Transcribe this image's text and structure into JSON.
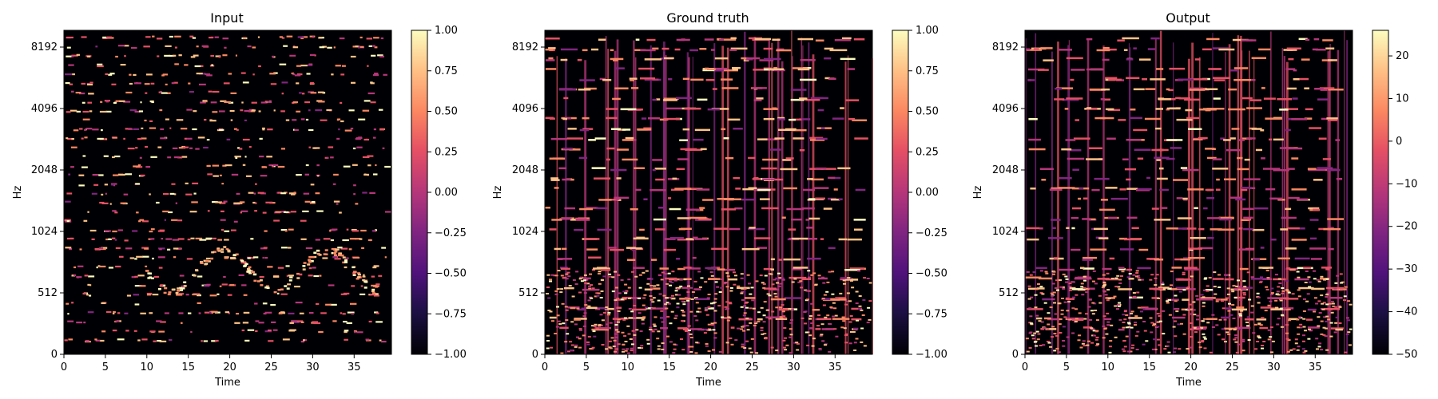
{
  "chart_data": [
    {
      "type": "heatmap",
      "title": "Input",
      "xlabel": "Time",
      "ylabel": "Hz",
      "xticks": [
        0,
        5,
        10,
        15,
        20,
        25,
        30,
        35
      ],
      "xlim": [
        0,
        39.5
      ],
      "yticks": [
        "0",
        "512",
        "1024",
        "2048",
        "4096",
        "8192"
      ],
      "yscale": "mel",
      "colormap": "magma",
      "colorbar": {
        "ticks": [
          "1.00",
          "0.75",
          "0.50",
          "0.25",
          "0.00",
          "−0.25",
          "−0.50",
          "−0.75",
          "−1.00"
        ],
        "range": [
          -1,
          1
        ]
      }
    },
    {
      "type": "heatmap",
      "title": "Ground truth",
      "xlabel": "Time",
      "ylabel": "Hz",
      "xticks": [
        0,
        5,
        10,
        15,
        20,
        25,
        30,
        35
      ],
      "xlim": [
        0,
        39.5
      ],
      "yticks": [
        "0",
        "512",
        "1024",
        "2048",
        "4096",
        "8192"
      ],
      "yscale": "mel",
      "colormap": "magma",
      "colorbar": {
        "ticks": [
          "1.00",
          "0.75",
          "0.50",
          "0.25",
          "0.00",
          "−0.25",
          "−0.50",
          "−0.75",
          "−1.00"
        ],
        "range": [
          -1,
          1
        ]
      }
    },
    {
      "type": "heatmap",
      "title": "Output",
      "xlabel": "Time",
      "ylabel": "Hz",
      "xticks": [
        0,
        5,
        10,
        15,
        20,
        25,
        30,
        35
      ],
      "xlim": [
        0,
        39.5
      ],
      "yticks": [
        "0",
        "512",
        "1024",
        "2048",
        "4096",
        "8192"
      ],
      "yscale": "mel",
      "colormap": "magma",
      "colorbar": {
        "ticks": [
          "20",
          "10",
          "0",
          "−10",
          "−20",
          "−30",
          "−40",
          "−50"
        ],
        "range": [
          -50,
          26
        ]
      }
    }
  ]
}
